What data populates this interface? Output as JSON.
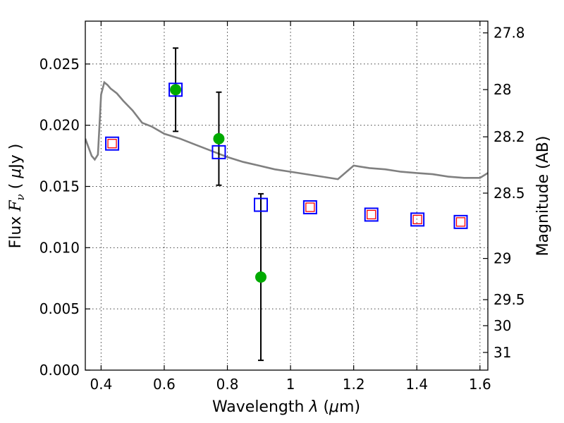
{
  "chart_data": {
    "type": "scatter",
    "xlabel": "Wavelength  λ (μm)",
    "ylabel": "Flux  F_ν  ( μJy )",
    "ylabel_parts": {
      "prefix": "Flux ",
      "symbol": "F",
      "subscript": "ν",
      "paren_open": " ( ",
      "mu": "μ",
      "unit": "Jy",
      "paren_close": " )"
    },
    "xlabel_parts": {
      "prefix": "Wavelength  ",
      "lambda": "λ",
      "paren_open": " (",
      "mu": "μ",
      "unit": "m)"
    },
    "right_ylabel": "Magnitude (AB)",
    "xlim": [
      0.35,
      1.625
    ],
    "ylim": [
      0.0,
      0.0285
    ],
    "x_ticks": [
      "0.4",
      "0.6",
      "0.8",
      "1",
      "1.2",
      "1.4",
      "1.6"
    ],
    "y_ticks": [
      "0.000",
      "0.005",
      "0.010",
      "0.015",
      "0.020",
      "0.025"
    ],
    "right_ticks": [
      "27.8",
      "28",
      "28.2",
      "28.5",
      "29",
      "29.5",
      "30",
      "31"
    ],
    "grid": true,
    "colors": {
      "model": "#808080",
      "observed": "#00aa00",
      "model_band": "#0000ff",
      "predicted": "#ff0000",
      "errorbar": "#000000"
    },
    "series": [
      {
        "kind": "model spectrum",
        "x": [
          0.35,
          0.36,
          0.37,
          0.38,
          0.39,
          0.4,
          0.41,
          0.42,
          0.43,
          0.45,
          0.47,
          0.5,
          0.53,
          0.56,
          0.6,
          0.65,
          0.7,
          0.75,
          0.8,
          0.85,
          0.9,
          0.95,
          1.0,
          1.05,
          1.1,
          1.15,
          1.2,
          1.25,
          1.3,
          1.35,
          1.4,
          1.45,
          1.5,
          1.55,
          1.6,
          1.625
        ],
        "y": [
          0.0189,
          0.0182,
          0.0175,
          0.0172,
          0.0176,
          0.0225,
          0.0235,
          0.0233,
          0.023,
          0.0226,
          0.022,
          0.0212,
          0.0202,
          0.0199,
          0.0193,
          0.0189,
          0.0184,
          0.0179,
          0.0174,
          0.017,
          0.0167,
          0.0164,
          0.0162,
          0.016,
          0.0158,
          0.0156,
          0.0167,
          0.0165,
          0.0164,
          0.0162,
          0.0161,
          0.016,
          0.0158,
          0.0157,
          0.0157,
          0.0161
        ]
      },
      {
        "kind": "observed",
        "x": [
          0.636,
          0.773,
          0.906
        ],
        "y": [
          0.0229,
          0.0189,
          0.0076
        ],
        "yerr": [
          0.0034,
          0.0038,
          0.0068
        ]
      },
      {
        "kind": "model bands",
        "x": [
          0.435,
          0.636,
          0.773,
          0.906,
          1.062,
          1.256,
          1.402,
          1.539
        ],
        "y": [
          0.0185,
          0.0229,
          0.0178,
          0.0135,
          0.0133,
          0.0127,
          0.0123,
          0.0121
        ]
      },
      {
        "kind": "predicted",
        "x": [
          0.435,
          1.062,
          1.256,
          1.402,
          1.539
        ],
        "y": [
          0.0185,
          0.0133,
          0.0127,
          0.0123,
          0.0121
        ]
      }
    ]
  }
}
